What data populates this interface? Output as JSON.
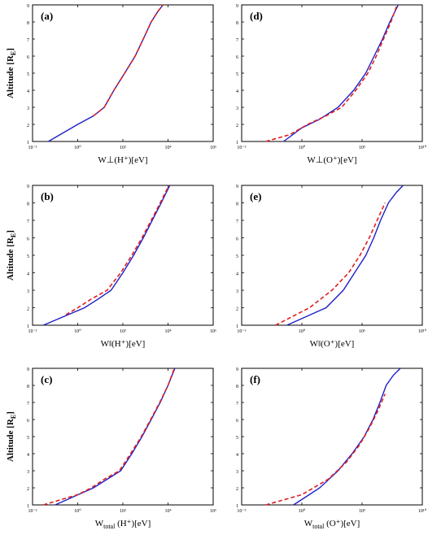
{
  "chart_data": [
    {
      "id": "a",
      "type": "line",
      "panel_label": "(a)",
      "xlabel": "W⊥(H⁺)[eV]",
      "ylabel": "Altitude [R_E]",
      "x_scale": "log",
      "xlim": [
        0.01,
        1000000
      ],
      "ylim": [
        1,
        9
      ],
      "x_ticks": [
        "10⁻²",
        "10⁰",
        "10²",
        "10⁴",
        "10⁶"
      ],
      "y_ticks": [
        "1",
        "2",
        "3",
        "4",
        "5",
        "6",
        "7",
        "8",
        "9"
      ],
      "series": [
        {
          "style": "solid",
          "color": "#1f1fc8",
          "x": [
            0.05,
            1,
            5,
            15,
            40,
            120,
            350,
            800,
            1800,
            3500,
            6000
          ],
          "y": [
            1,
            2,
            2.5,
            3,
            4,
            5,
            6,
            7,
            8,
            8.6,
            9
          ]
        },
        {
          "style": "dashed",
          "color": "#e01f1f",
          "x": [
            5,
            15,
            40,
            120,
            350,
            800,
            1800,
            3500,
            6000
          ],
          "y": [
            2.5,
            3,
            4,
            5,
            6,
            7,
            8,
            8.6,
            9
          ]
        }
      ]
    },
    {
      "id": "d",
      "type": "line",
      "panel_label": "(d)",
      "xlabel": "W⊥(O⁺)[eV]",
      "ylabel": "",
      "x_scale": "log",
      "xlim": [
        1e-05,
        10000000000
      ],
      "ylim": [
        1,
        9
      ],
      "x_ticks": [
        "10⁻⁵",
        "10⁰",
        "10⁵",
        "10¹⁰"
      ],
      "y_ticks": [
        "1",
        "2",
        "3",
        "4",
        "5",
        "6",
        "7",
        "8",
        "9"
      ],
      "series": [
        {
          "style": "solid",
          "color": "#1f1fc8",
          "x": [
            0.03,
            1,
            30,
            1000,
            20000,
            200000,
            1000000,
            5000000,
            20000000,
            100000000
          ],
          "y": [
            1,
            1.8,
            2.3,
            3,
            4,
            5,
            6,
            7,
            8,
            9
          ]
        },
        {
          "style": "dashed",
          "color": "#e01f1f",
          "x": [
            0.001,
            0.1,
            3,
            100,
            2000,
            30000,
            300000,
            1500000,
            6000000,
            25000000,
            80000000
          ],
          "y": [
            1,
            1.4,
            2,
            2.5,
            3,
            4,
            5,
            6,
            7,
            8,
            9
          ]
        }
      ]
    },
    {
      "id": "b",
      "type": "line",
      "panel_label": "(b)",
      "xlabel": "W‖(H⁺)[eV]",
      "ylabel": "Altitude [R_E]",
      "x_scale": "log",
      "xlim": [
        0.01,
        1000000
      ],
      "ylim": [
        1,
        9
      ],
      "x_ticks": [
        "10⁻²",
        "10⁰",
        "10²",
        "10⁴",
        "10⁶"
      ],
      "y_ticks": [
        "1",
        "2",
        "3",
        "4",
        "5",
        "6",
        "7",
        "8",
        "9"
      ],
      "series": [
        {
          "style": "solid",
          "color": "#1f1fc8",
          "x": [
            0.03,
            2,
            8,
            30,
            100,
            300,
            800,
            2000,
            5000,
            12000
          ],
          "y": [
            1,
            2,
            2.5,
            3,
            4,
            5,
            6,
            7,
            8,
            9
          ]
        },
        {
          "style": "dashed",
          "color": "#e01f1f",
          "x": [
            0.3,
            1,
            4,
            20,
            80,
            250,
            700,
            1800,
            4500,
            11000
          ],
          "y": [
            1.6,
            2,
            2.5,
            3,
            4,
            5,
            6,
            7,
            8,
            9
          ]
        }
      ]
    },
    {
      "id": "e",
      "type": "line",
      "panel_label": "(e)",
      "xlabel": "W‖(O⁺)[eV]",
      "ylabel": "",
      "x_scale": "log",
      "xlim": [
        1e-06,
        10000000000
      ],
      "ylim": [
        1,
        9
      ],
      "x_ticks": [
        "10⁻⁶",
        "10⁰",
        "10⁶",
        "10¹⁰"
      ],
      "y_ticks": [
        "1",
        "2",
        "3",
        "4",
        "5",
        "6",
        "7",
        "8",
        "9"
      ],
      "series": [
        {
          "style": "solid",
          "color": "#1f1fc8",
          "x": [
            0.01,
            30,
            1000,
            10000,
            100000,
            500000,
            2000000,
            10000000,
            50000000,
            200000000
          ],
          "y": [
            1,
            2,
            3,
            4,
            5,
            6,
            7,
            8,
            8.6,
            9
          ]
        },
        {
          "style": "dashed",
          "color": "#e01f1f",
          "x": [
            0.001,
            1,
            100,
            3000,
            30000,
            200000,
            1000000,
            5000000
          ],
          "y": [
            1,
            2,
            3,
            4,
            5,
            6,
            7,
            8
          ]
        }
      ]
    },
    {
      "id": "c",
      "type": "line",
      "panel_label": "(c)",
      "xlabel": "W_total (H⁺)[eV]",
      "ylabel": "Altitude [R_E]",
      "x_scale": "log",
      "xlim": [
        0.01,
        1000000
      ],
      "ylim": [
        1,
        9
      ],
      "x_ticks": [
        "10⁻²",
        "10⁰",
        "10²",
        "10⁴",
        "10⁶"
      ],
      "y_ticks": [
        "1",
        "2",
        "3",
        "4",
        "5",
        "6",
        "7",
        "8",
        "9"
      ],
      "series": [
        {
          "style": "solid",
          "color": "#1f1fc8",
          "x": [
            0.1,
            5,
            20,
            80,
            250,
            700,
            1800,
            4500,
            10000,
            20000
          ],
          "y": [
            1,
            2,
            2.5,
            3,
            4,
            5,
            6,
            7,
            8,
            9
          ]
        },
        {
          "style": "dashed",
          "color": "#e01f1f",
          "x": [
            0.03,
            1,
            4,
            15,
            70,
            220,
            650,
            1700,
            4300,
            10000,
            19000
          ],
          "y": [
            1,
            1.6,
            2,
            2.5,
            3,
            4,
            5,
            6,
            7,
            8,
            9
          ]
        }
      ]
    },
    {
      "id": "f",
      "type": "line",
      "panel_label": "(f)",
      "xlabel": "W_total (O⁺)[eV]",
      "ylabel": "",
      "x_scale": "log",
      "xlim": [
        1e-05,
        10000000000
      ],
      "ylim": [
        1,
        9
      ],
      "x_ticks": [
        "10⁻⁵",
        "10⁰",
        "10⁵",
        "10¹⁰"
      ],
      "y_ticks": [
        "1",
        "2",
        "3",
        "4",
        "5",
        "6",
        "7",
        "8",
        "9"
      ],
      "series": [
        {
          "style": "solid",
          "color": "#1f1fc8",
          "x": [
            0.2,
            30,
            1000,
            15000,
            150000,
            800000,
            3000000,
            10000000,
            40000000,
            150000000
          ],
          "y": [
            1,
            2,
            3,
            4,
            5,
            6,
            7,
            8,
            8.6,
            9
          ]
        },
        {
          "style": "dashed",
          "color": "#e01f1f",
          "x": [
            0.001,
            1,
            150,
            5000,
            60000,
            400000,
            2000000,
            8000000
          ],
          "y": [
            1,
            1.6,
            2.5,
            3.5,
            4.5,
            5.5,
            6.5,
            7.5
          ]
        }
      ]
    }
  ]
}
